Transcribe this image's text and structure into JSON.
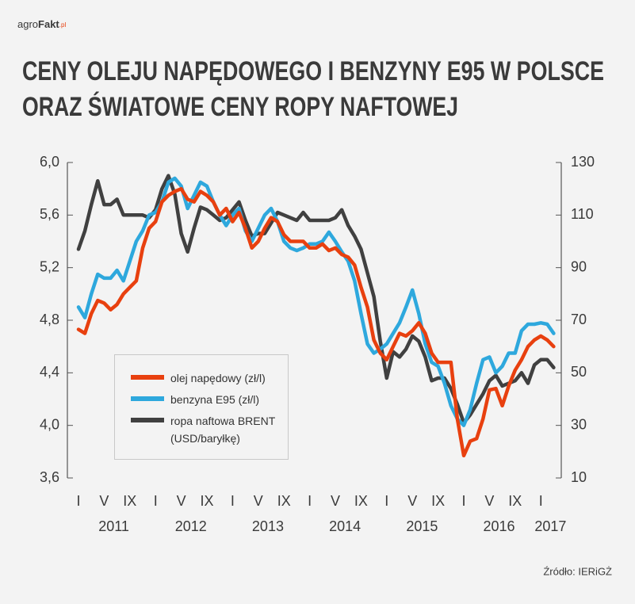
{
  "chart_data": {
    "type": "line",
    "logo": {
      "prefix": "agro",
      "name": "Fakt",
      "suffix": ".pl"
    },
    "title_lines": [
      "CENY OLEJU NAPĘDOWEGO I BENZYNY E95 W POLSCE",
      "ORAZ ŚWIATOWE CENY ROPY NAFTOWEJ"
    ],
    "source": "Źródło: IERiGŻ",
    "categories": [
      "I",
      null,
      null,
      null,
      "V",
      null,
      null,
      null,
      "IX",
      null,
      null,
      null,
      "I",
      null,
      null,
      null,
      "V",
      null,
      null,
      null,
      "IX",
      null,
      null,
      null,
      "I",
      null,
      null,
      null,
      "V",
      null,
      null,
      null,
      "IX",
      null,
      null,
      null,
      "I",
      null,
      null,
      null,
      "V",
      null,
      null,
      null,
      "IX",
      null,
      null,
      null,
      "I",
      null,
      null,
      null,
      "V",
      null,
      null,
      null,
      "IX",
      null,
      null,
      null,
      "I",
      null,
      null,
      null,
      "V",
      null,
      null,
      null,
      "IX",
      null,
      null,
      null,
      "I",
      null,
      null
    ],
    "years": [
      "2011",
      "2012",
      "2013",
      "2014",
      "2015",
      "2016",
      "2017"
    ],
    "ylim": [
      3.6,
      6.0
    ],
    "yticks": [
      {
        "value": 3.6,
        "label": "3,6"
      },
      {
        "value": 4.0,
        "label": "4,0"
      },
      {
        "value": 4.4,
        "label": "4,4"
      },
      {
        "value": 4.8,
        "label": "4,8"
      },
      {
        "value": 5.2,
        "label": "5,2"
      },
      {
        "value": 5.6,
        "label": "5,6"
      },
      {
        "value": 6.0,
        "label": "6,0"
      }
    ],
    "y2lim": [
      10,
      130
    ],
    "y2ticks": [
      10,
      30,
      50,
      70,
      90,
      110,
      130
    ],
    "grid": false,
    "legend": "lower-left",
    "series": [
      {
        "name": "olej napędowy (zł/l)",
        "color": "#e8400f",
        "values": [
          4.73,
          4.7,
          4.85,
          4.95,
          4.93,
          4.88,
          4.92,
          5.0,
          5.05,
          5.1,
          5.35,
          5.5,
          5.55,
          5.7,
          5.75,
          5.78,
          5.8,
          5.72,
          5.7,
          5.78,
          5.75,
          5.7,
          5.6,
          5.65,
          5.55,
          5.62,
          5.5,
          5.35,
          5.4,
          5.5,
          5.58,
          5.55,
          5.45,
          5.4,
          5.4,
          5.4,
          5.35,
          5.35,
          5.38,
          5.33,
          5.35,
          5.3,
          5.28,
          5.22,
          5.05,
          4.9,
          4.65,
          4.55,
          4.5,
          4.6,
          4.7,
          4.68,
          4.72,
          4.78,
          4.7,
          4.55,
          4.48,
          4.48,
          4.48,
          4.05,
          3.77,
          3.88,
          3.9,
          4.05,
          4.27,
          4.28,
          4.15,
          4.3,
          4.42,
          4.5,
          4.6,
          4.65,
          4.68,
          4.65,
          4.6
        ]
      },
      {
        "name": "benzyna E95 (zł/l)",
        "color": "#2ea8dd",
        "values": [
          4.9,
          4.82,
          5.0,
          5.15,
          5.12,
          5.12,
          5.18,
          5.1,
          5.25,
          5.4,
          5.48,
          5.6,
          5.62,
          5.7,
          5.85,
          5.88,
          5.82,
          5.65,
          5.75,
          5.85,
          5.82,
          5.7,
          5.6,
          5.52,
          5.6,
          5.65,
          5.48,
          5.4,
          5.5,
          5.6,
          5.65,
          5.55,
          5.4,
          5.35,
          5.33,
          5.35,
          5.38,
          5.38,
          5.4,
          5.47,
          5.4,
          5.32,
          5.25,
          5.1,
          4.85,
          4.62,
          4.55,
          4.58,
          4.62,
          4.7,
          4.78,
          4.9,
          5.03,
          4.85,
          4.62,
          4.48,
          4.45,
          4.32,
          4.15,
          4.05,
          4.0,
          4.12,
          4.32,
          4.5,
          4.52,
          4.4,
          4.45,
          4.55,
          4.55,
          4.72,
          4.77,
          4.77,
          4.78,
          4.77,
          4.7
        ]
      },
      {
        "name": "ropa naftowa BRENT (USD/baryłkę)",
        "color": "#404040",
        "axis": "y2",
        "values": [
          97,
          104,
          114,
          123,
          114,
          114,
          116,
          110,
          110,
          110,
          110,
          109,
          112,
          120,
          125,
          118,
          103,
          96,
          105,
          113,
          112,
          110,
          108,
          109,
          112,
          115,
          108,
          102,
          103,
          103,
          107,
          111,
          110,
          109,
          108,
          111,
          108,
          108,
          108,
          108,
          109,
          112,
          106,
          102,
          97,
          88,
          79,
          62,
          48,
          58,
          56,
          59,
          64,
          62,
          56,
          47,
          48,
          48,
          44,
          38,
          31,
          34,
          38,
          42,
          47,
          49,
          45,
          46,
          47,
          50,
          46,
          53,
          55,
          55,
          52
        ]
      }
    ]
  }
}
